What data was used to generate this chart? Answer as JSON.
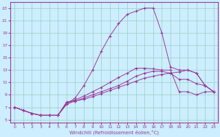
{
  "xlabel": "Windchill (Refroidissement éolien,°C)",
  "bg_color": "#cceeff",
  "line_color": "#993399",
  "grid_color": "#99ccbb",
  "xlim": [
    -0.5,
    23.5
  ],
  "ylim": [
    4.5,
    24.0
  ],
  "yticks": [
    5,
    7,
    9,
    11,
    13,
    15,
    17,
    19,
    21,
    23
  ],
  "xticks": [
    0,
    1,
    2,
    3,
    4,
    5,
    6,
    7,
    8,
    9,
    10,
    11,
    12,
    13,
    14,
    15,
    16,
    17,
    18,
    19,
    20,
    21,
    22,
    23
  ],
  "line1_x": [
    0,
    1,
    2,
    3,
    4,
    5,
    6,
    7,
    8,
    9,
    10,
    11,
    12,
    13,
    14,
    15,
    16,
    17,
    18,
    19,
    20,
    21,
    22,
    23
  ],
  "line1_y": [
    7,
    6.5,
    6.0,
    5.7,
    5.7,
    5.7,
    7.8,
    8.2,
    8.8,
    9.5,
    10.2,
    11.0,
    11.8,
    12.5,
    13.3,
    13.3,
    13.2,
    13.0,
    13.0,
    9.5,
    9.5,
    9.0,
    9.5,
    9.5
  ],
  "line2_x": [
    0,
    1,
    2,
    3,
    4,
    5,
    6,
    7,
    8,
    9,
    10,
    11,
    12,
    13,
    14,
    15,
    16,
    17,
    18,
    19,
    20,
    21,
    22,
    23
  ],
  "line2_y": [
    7,
    6.5,
    6.0,
    5.7,
    5.7,
    5.7,
    7.8,
    8.0,
    8.5,
    9.0,
    9.5,
    10.0,
    10.5,
    11.2,
    12.0,
    12.5,
    12.8,
    12.8,
    12.5,
    11.5,
    11.5,
    10.8,
    10.5,
    9.5
  ],
  "line3_x": [
    0,
    1,
    2,
    3,
    4,
    5,
    6,
    7,
    8,
    9,
    10,
    11,
    12,
    13,
    14,
    15,
    16,
    17,
    18,
    19,
    20,
    21,
    22,
    23
  ],
  "line3_y": [
    7,
    6.5,
    6.0,
    5.7,
    5.7,
    5.7,
    7.5,
    8.0,
    8.3,
    8.7,
    9.2,
    9.7,
    10.2,
    10.7,
    11.2,
    11.7,
    12.0,
    12.3,
    12.5,
    12.7,
    13.0,
    12.5,
    10.5,
    9.5
  ],
  "line4_x": [
    0,
    1,
    2,
    3,
    4,
    5,
    6,
    7,
    8,
    9,
    10,
    11,
    12,
    13,
    14,
    15,
    16,
    17,
    18,
    19,
    20,
    21,
    22,
    23
  ],
  "line4_y": [
    7,
    6.5,
    6.0,
    5.7,
    5.7,
    5.7,
    7.5,
    8.5,
    10.5,
    13.0,
    16.0,
    18.5,
    20.5,
    22.0,
    22.5,
    23.0,
    23.0,
    19.0,
    13.5,
    13.0,
    13.0,
    12.5,
    10.5,
    9.5
  ]
}
